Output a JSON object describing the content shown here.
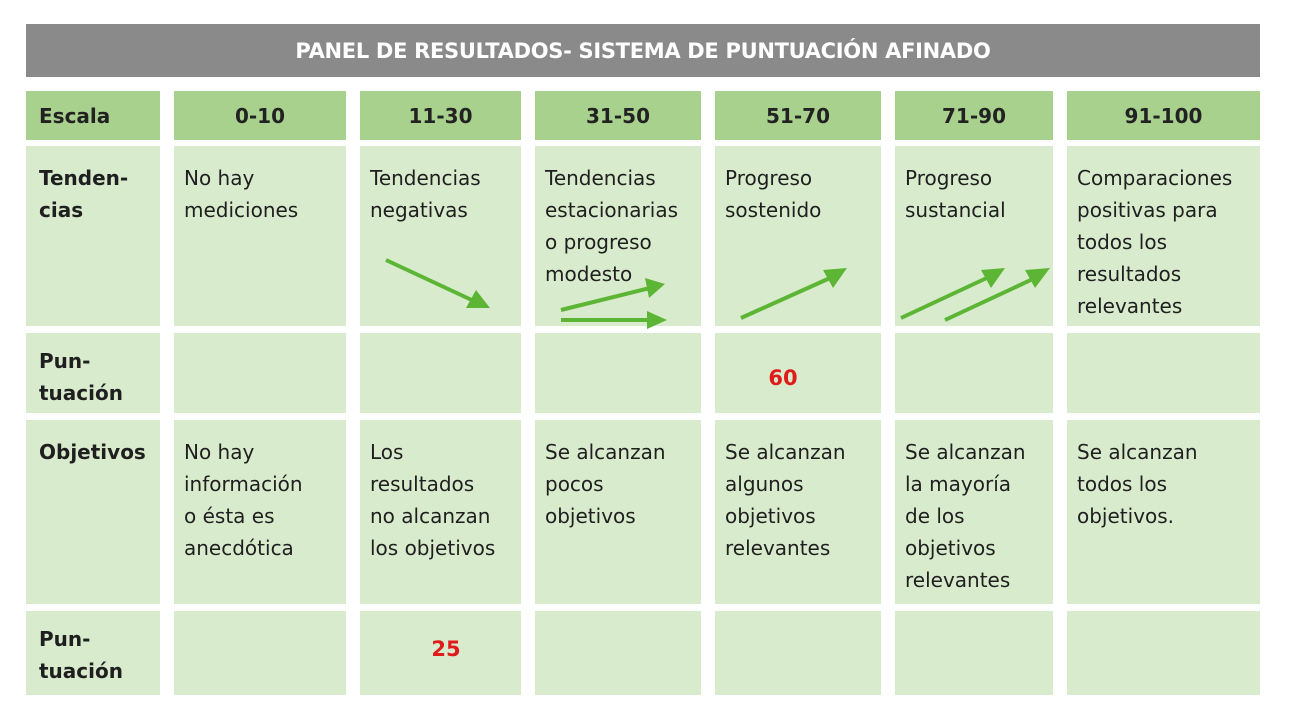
{
  "title": "PANEL DE RESULTADOS- SISTEMA DE PUNTUACIÓN AFINADO",
  "header": {
    "label": "Escala",
    "ranges": [
      "0-10",
      "11-30",
      "31-50",
      "51-70",
      "71-90",
      "91-100"
    ]
  },
  "rows": {
    "tendencias": {
      "label": "Tenden-\ncias",
      "cells": [
        "No hay\nmediciones",
        "Tendencias\nnegativas",
        "Tendencias\nestacionarias\no progreso\nmodesto",
        "Progreso\nsostenido",
        "Progreso\nsustancial",
        "Comparaciones\npositivas para\ntodos los\nresultados\nrelevantes"
      ]
    },
    "puntuacion1": {
      "label": "Pun-\ntuación",
      "score": "60",
      "score_range": "51-70"
    },
    "objetivos": {
      "label": "Objetivos",
      "cells": [
        "No hay\ninformación\no ésta es\nanecdótica",
        "Los\nresultados\nno alcanzan\nlos objetivos",
        "Se alcanzan\npocos\nobjetivos",
        "Se alcanzan\nalgunos\nobjetivos\nrelevantes",
        "Se alcanzan\nla mayoría\nde los\nobjetivos\nrelevantes",
        "Se alcanzan\ntodos los\nobjetivos."
      ]
    },
    "puntuacion2": {
      "label": "Pun-\ntuación",
      "score": "25",
      "score_range": "11-30"
    }
  },
  "colors": {
    "title_bar": "#8a8a8a",
    "header_green": "#a9d18e",
    "cell_green": "#d9ebcd",
    "arrow_green": "#5cb534",
    "score_red": "#e01b1b"
  },
  "icons": [
    "trend-down-arrow-icon",
    "trend-flat-arrows-icon",
    "trend-up-arrow-icon",
    "trend-double-up-arrows-icon"
  ]
}
